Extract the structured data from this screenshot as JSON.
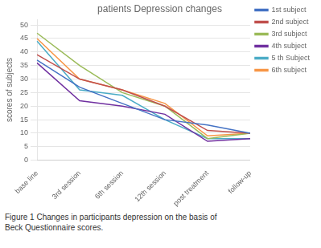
{
  "chart_data": {
    "type": "line",
    "title": "patients Depression changes",
    "ylabel": "scores of subjects",
    "categories": [
      "base line",
      "3rd session",
      "6th session",
      "12th session",
      "post treatment",
      "follow-up"
    ],
    "series": [
      {
        "name": "1st subject",
        "color": "#4472C4",
        "values": [
          37,
          27,
          21,
          15,
          13,
          10
        ]
      },
      {
        "name": "2nd subject",
        "color": "#C0504D",
        "values": [
          39,
          30,
          26,
          20,
          11,
          10
        ]
      },
      {
        "name": "3rd subject",
        "color": "#9BBB59",
        "values": [
          47,
          35,
          25,
          20,
          8,
          10
        ]
      },
      {
        "name": "4th subject",
        "color": "#7030A0",
        "values": [
          36,
          22,
          20,
          17,
          7,
          8
        ]
      },
      {
        "name": "5 th Subject",
        "color": "#4BACC6",
        "values": [
          44,
          26,
          24,
          15,
          8,
          8
        ]
      },
      {
        "name": "6th subject",
        "color": "#F79646",
        "values": [
          45,
          30,
          26,
          21,
          9,
          10
        ]
      }
    ],
    "ylim": [
      0,
      52
    ],
    "yticks": [
      0,
      5,
      10,
      15,
      20,
      25,
      30,
      35,
      40,
      45,
      50
    ],
    "grid": true,
    "legend": "right",
    "annotations": [
      "Figure 1 Changes in participants depression on the basis of\nBeck Questionnaire scores."
    ]
  }
}
